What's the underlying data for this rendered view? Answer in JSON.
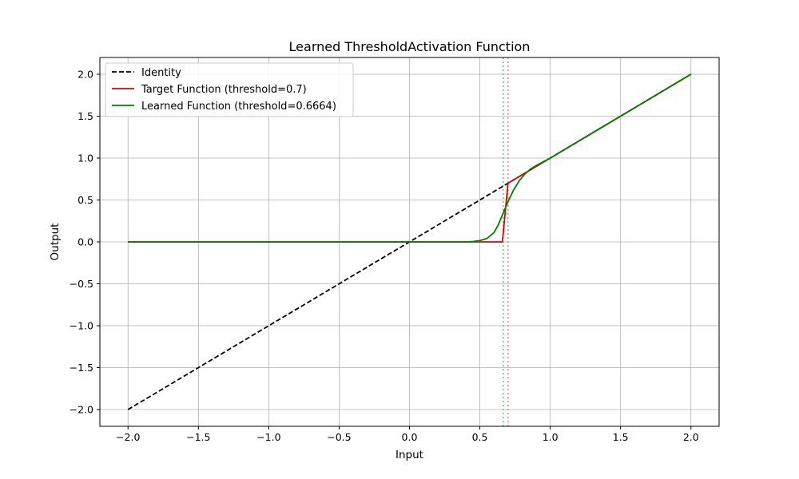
{
  "chart_data": {
    "type": "line",
    "title": "Learned ThresholdActivation Function",
    "xlabel": "Input",
    "ylabel": "Output",
    "xlim": [
      -2.2,
      2.2
    ],
    "ylim": [
      -2.2,
      2.2
    ],
    "grid": true,
    "legend_position": "top-left",
    "x_ticks": [
      -2.0,
      -1.5,
      -1.0,
      -0.5,
      0.0,
      0.5,
      1.0,
      1.5,
      2.0
    ],
    "x_tick_labels": [
      "−2.0",
      "−1.5",
      "−1.0",
      "−0.5",
      "0.0",
      "0.5",
      "1.0",
      "1.5",
      "2.0"
    ],
    "y_ticks": [
      -2.0,
      -1.5,
      -1.0,
      -0.5,
      0.0,
      0.5,
      1.0,
      1.5,
      2.0
    ],
    "y_tick_labels": [
      "−2.0",
      "−1.5",
      "−1.0",
      "−0.5",
      "0.0",
      "0.5",
      "1.0",
      "1.5",
      "2.0"
    ],
    "series": [
      {
        "name": "Identity",
        "color": "#000000",
        "style": "dashed",
        "points": [
          [
            -2.0,
            -2.0
          ],
          [
            2.0,
            2.0
          ]
        ]
      },
      {
        "name": "Target Function (threshold=0.7)",
        "color": "#e00000",
        "style": "solid",
        "points": [
          [
            -2.0,
            0.0
          ],
          [
            0.66,
            0.0
          ],
          [
            0.7,
            0.7
          ],
          [
            2.0,
            2.0
          ]
        ]
      },
      {
        "name": "Learned Function (threshold=0.6664)",
        "color": "#008000",
        "style": "solid",
        "points": [
          [
            -2.0,
            0.0
          ],
          [
            0.3,
            0.0
          ],
          [
            0.4,
            0.0
          ],
          [
            0.45,
            0.005
          ],
          [
            0.5,
            0.015
          ],
          [
            0.55,
            0.04
          ],
          [
            0.6,
            0.11
          ],
          [
            0.63,
            0.2
          ],
          [
            0.66,
            0.32
          ],
          [
            0.7,
            0.48
          ],
          [
            0.74,
            0.62
          ],
          [
            0.78,
            0.73
          ],
          [
            0.82,
            0.81
          ],
          [
            0.86,
            0.87
          ],
          [
            0.9,
            0.91
          ],
          [
            0.95,
            0.955
          ],
          [
            1.0,
            1.0
          ],
          [
            1.5,
            1.5
          ],
          [
            2.0,
            2.0
          ]
        ]
      }
    ],
    "vlines": [
      {
        "x": 0.7,
        "color": "#f08080",
        "style": "dotted"
      },
      {
        "x": 0.6664,
        "color": "#66cc66",
        "style": "dotted"
      }
    ]
  }
}
